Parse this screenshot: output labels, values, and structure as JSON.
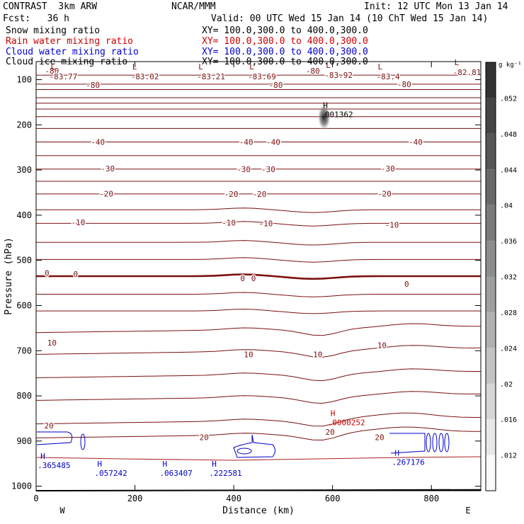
{
  "header": {
    "model": "CONTRAST  3km ARW",
    "org": "NCAR/MMM",
    "init": "Init: 12 UTC Mon 13 Jan 14",
    "fcst": "Fcst:   36 h",
    "valid": "Valid: 00 UTC Wed 15 Jan 14 (10 ChT Wed 15 Jan 14)"
  },
  "legend": [
    {
      "name": "Snow mixing ratio",
      "xy": "XY= 100.0,300.0 to 400.0,300.0",
      "color": "#000000"
    },
    {
      "name": "Rain water mixing ratio",
      "xy": "XY= 100.0,300.0 to 400.0,300.0",
      "color": "#cc0000"
    },
    {
      "name": "Cloud water mixing ratio",
      "xy": "XY= 100.0,300.0 to 400.0,300.0",
      "color": "#0000cc"
    },
    {
      "name": "Cloud ice mixing ratio",
      "xy": "XY= 100.0,300.0 to 400.0,300.0",
      "color": "#000000"
    }
  ],
  "chart_data": {
    "type": "contour-cross-section",
    "xlabel": "Distance (km)",
    "ylabel": "Pressure (hPa)",
    "xlim": [
      0,
      900
    ],
    "ylim": [
      1010,
      60
    ],
    "x_ticks": [
      "0",
      "200",
      "400",
      "600",
      "800"
    ],
    "x_tick_values": [
      0,
      200,
      400,
      600,
      800
    ],
    "y_ticks": [
      "100",
      "200",
      "300",
      "400",
      "500",
      "600",
      "700",
      "800",
      "900",
      "1000"
    ],
    "y_tick_values": [
      100,
      200,
      300,
      400,
      500,
      600,
      700,
      800,
      900,
      1000
    ],
    "west_label": "W",
    "east_label": "E",
    "colorbar": {
      "unit": "g kg⁻¹",
      "ticks": [
        ".012",
        ".016",
        ".02",
        ".024",
        ".028",
        ".032",
        ".036",
        ".04",
        ".044",
        ".048",
        ".052"
      ],
      "values": [
        0.012,
        0.016,
        0.02,
        0.024,
        0.028,
        0.032,
        0.036,
        0.04,
        0.044,
        0.048,
        0.052
      ]
    },
    "temperature_contour_labels": [
      {
        "x": 32,
        "p": 80,
        "text": "-80"
      },
      {
        "x": 560,
        "p": 80,
        "text": "-80"
      },
      {
        "x": 115,
        "p": 112,
        "text": "-80"
      },
      {
        "x": 485,
        "p": 112,
        "text": "-80"
      },
      {
        "x": 745,
        "p": 110,
        "text": "-80"
      },
      {
        "x": 125,
        "p": 238,
        "text": "-40"
      },
      {
        "x": 425,
        "p": 238,
        "text": "-40"
      },
      {
        "x": 480,
        "p": 238,
        "text": "-40"
      },
      {
        "x": 768,
        "p": 238,
        "text": "-40"
      },
      {
        "x": 145,
        "p": 297,
        "text": "-30"
      },
      {
        "x": 420,
        "p": 298,
        "text": "-30"
      },
      {
        "x": 470,
        "p": 298,
        "text": "-30"
      },
      {
        "x": 712,
        "p": 297,
        "text": "-30"
      },
      {
        "x": 142,
        "p": 352,
        "text": "-20"
      },
      {
        "x": 395,
        "p": 353,
        "text": "-20"
      },
      {
        "x": 452,
        "p": 353,
        "text": "-20"
      },
      {
        "x": 705,
        "p": 352,
        "text": "-20"
      },
      {
        "x": 85,
        "p": 416,
        "text": "-10"
      },
      {
        "x": 390,
        "p": 417,
        "text": "-10"
      },
      {
        "x": 465,
        "p": 418,
        "text": "-10"
      },
      {
        "x": 720,
        "p": 421,
        "text": "-10"
      },
      {
        "x": 22,
        "p": 528,
        "text": "0"
      },
      {
        "x": 80,
        "p": 530,
        "text": "0"
      },
      {
        "x": 418,
        "p": 540,
        "text": "0"
      },
      {
        "x": 440,
        "p": 540,
        "text": "0"
      },
      {
        "x": 750,
        "p": 552,
        "text": "0"
      },
      {
        "x": 32,
        "p": 682,
        "text": "10"
      },
      {
        "x": 430,
        "p": 708,
        "text": "10"
      },
      {
        "x": 570,
        "p": 708,
        "text": "10"
      },
      {
        "x": 700,
        "p": 688,
        "text": "10"
      },
      {
        "x": 26,
        "p": 866,
        "text": "20"
      },
      {
        "x": 340,
        "p": 892,
        "text": "20"
      },
      {
        "x": 595,
        "p": 880,
        "text": "20"
      },
      {
        "x": 695,
        "p": 892,
        "text": "20"
      }
    ],
    "minima": [
      {
        "x": 18,
        "p": 90,
        "value": "-83.77"
      },
      {
        "x": 183,
        "p": 90,
        "value": "-83.02"
      },
      {
        "x": 317,
        "p": 90,
        "value": "-83.21"
      },
      {
        "x": 420,
        "p": 90,
        "value": "-83.69"
      },
      {
        "x": 575,
        "p": 87,
        "value": "-83.92"
      },
      {
        "x": 680,
        "p": 90,
        "value": "-83.4"
      },
      {
        "x": 835,
        "p": 80,
        "value": "-82.81"
      }
    ],
    "maxima": [
      {
        "x": 575,
        "p": 178,
        "value": ".001362",
        "series": "snow"
      },
      {
        "x": 590,
        "p": 860,
        "value": ".0000252",
        "series": "rain"
      },
      {
        "x": 3,
        "p": 955,
        "value": ".365485",
        "series": "cloud water"
      },
      {
        "x": 118,
        "p": 972,
        "value": ".057242",
        "series": "cloud water"
      },
      {
        "x": 250,
        "p": 972,
        "value": ".063407",
        "series": "cloud water"
      },
      {
        "x": 350,
        "p": 972,
        "value": ".222581",
        "series": "cloud water"
      },
      {
        "x": 720,
        "p": 948,
        "value": ".267176",
        "series": "cloud water"
      }
    ]
  }
}
